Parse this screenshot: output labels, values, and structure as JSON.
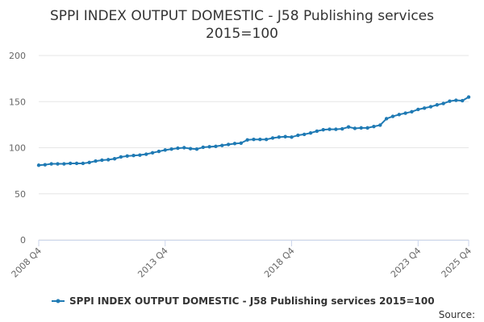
{
  "chart_data": {
    "type": "line",
    "title": "SPPI INDEX OUTPUT DOMESTIC - J58 Publishing services",
    "subtitle": "2015=100",
    "xlabel": "",
    "ylabel": "",
    "ylim": [
      0,
      200
    ],
    "yticks": [
      0,
      50,
      100,
      150,
      200
    ],
    "grid": true,
    "legend_position": "bottom-center",
    "source": "Source:",
    "colors": {
      "series": "#1f7ab4",
      "grid": "#e6e6e6",
      "axis": "#ccd6eb"
    },
    "x_tick_labels": [
      "2008 Q4",
      "2013 Q4",
      "2018 Q4",
      "2023 Q4",
      "2025 Q4"
    ],
    "x_tick_indices": [
      0,
      20,
      40,
      60,
      68
    ],
    "series": [
      {
        "name": "SPPI INDEX OUTPUT DOMESTIC - J58 Publishing services 2015=100",
        "x": [
          "2008 Q4",
          "2009 Q1",
          "2009 Q2",
          "2009 Q3",
          "2009 Q4",
          "2010 Q1",
          "2010 Q2",
          "2010 Q3",
          "2010 Q4",
          "2011 Q1",
          "2011 Q2",
          "2011 Q3",
          "2011 Q4",
          "2012 Q1",
          "2012 Q2",
          "2012 Q3",
          "2012 Q4",
          "2013 Q1",
          "2013 Q2",
          "2013 Q3",
          "2013 Q4",
          "2014 Q1",
          "2014 Q2",
          "2014 Q3",
          "2014 Q4",
          "2015 Q1",
          "2015 Q2",
          "2015 Q3",
          "2015 Q4",
          "2016 Q1",
          "2016 Q2",
          "2016 Q3",
          "2016 Q4",
          "2017 Q1",
          "2017 Q2",
          "2017 Q3",
          "2017 Q4",
          "2018 Q1",
          "2018 Q2",
          "2018 Q3",
          "2018 Q4",
          "2019 Q1",
          "2019 Q2",
          "2019 Q3",
          "2019 Q4",
          "2020 Q1",
          "2020 Q2",
          "2020 Q3",
          "2020 Q4",
          "2021 Q1",
          "2021 Q2",
          "2021 Q3",
          "2021 Q4",
          "2022 Q1",
          "2022 Q2",
          "2022 Q3",
          "2022 Q4",
          "2023 Q1",
          "2023 Q2",
          "2023 Q3",
          "2023 Q4",
          "2024 Q1",
          "2024 Q2",
          "2024 Q3",
          "2024 Q4",
          "2025 Q1",
          "2025 Q2",
          "2025 Q3",
          "2025 Q4"
        ],
        "values": [
          81,
          81.5,
          82.5,
          82.5,
          82.5,
          83,
          83,
          83,
          84,
          85.5,
          86.5,
          87,
          88,
          90,
          91,
          91.5,
          92,
          93,
          94.5,
          96,
          97.5,
          98.5,
          99.5,
          100,
          99,
          98.5,
          100.5,
          101,
          101.5,
          102.5,
          103.5,
          104.5,
          105,
          108.5,
          109,
          109,
          109,
          110.5,
          111.5,
          112,
          111.5,
          113.5,
          114.5,
          116,
          118,
          119.5,
          120,
          120,
          120.5,
          122.5,
          121,
          121.5,
          121.5,
          123,
          124.5,
          131.5,
          134,
          136,
          137.5,
          139,
          141.5,
          143,
          144.5,
          146.5,
          148,
          150.5,
          151.5,
          151,
          155
        ]
      }
    ]
  }
}
